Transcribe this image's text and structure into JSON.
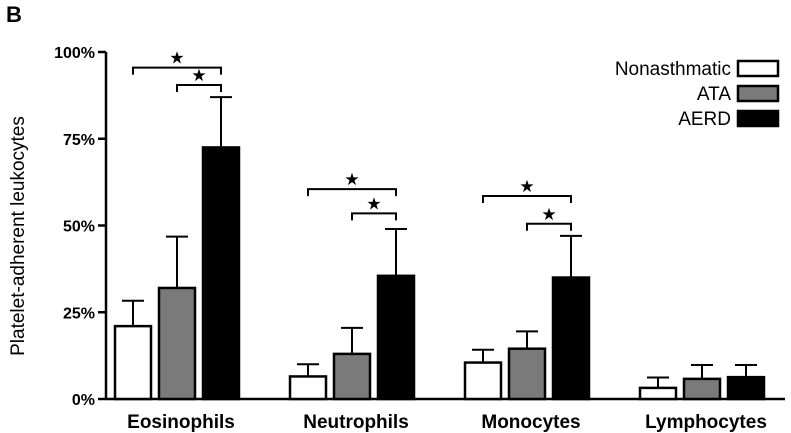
{
  "panel_label": "B",
  "chart_data": {
    "type": "bar",
    "ylabel": "Platelet-adherent leukocytes",
    "xlabel": "",
    "ylim": [
      0,
      100
    ],
    "y_ticks": [
      0,
      25,
      50,
      75,
      100
    ],
    "y_tick_labels": [
      "0%",
      "25%",
      "50%",
      "75%",
      "100%"
    ],
    "categories": [
      "Eosinophils",
      "Neutrophils",
      "Monocytes",
      "Lymphocytes"
    ],
    "legend_position": "top-right",
    "grid": false,
    "series": [
      {
        "name": "Nonasthmatic",
        "color": "#ffffff",
        "values": [
          21,
          6.5,
          10.5,
          3.2
        ],
        "errors": [
          7.3,
          3.5,
          3.7,
          3.0
        ]
      },
      {
        "name": "ATA",
        "color": "#7a7a7a",
        "values": [
          32,
          13,
          14.5,
          5.8
        ],
        "errors": [
          14.8,
          7.5,
          5.0,
          4.0
        ]
      },
      {
        "name": "AERD",
        "color": "#000000",
        "values": [
          72.5,
          35.5,
          35,
          6.3
        ],
        "errors": [
          14.5,
          13.5,
          12,
          3.5
        ]
      }
    ],
    "significance_marker": "★",
    "significance": [
      {
        "category": 0,
        "from_series": 0,
        "to_series": 2,
        "y": 95.5
      },
      {
        "category": 0,
        "from_series": 1,
        "to_series": 2,
        "y": 90.5
      },
      {
        "category": 1,
        "from_series": 0,
        "to_series": 2,
        "y": 60.5
      },
      {
        "category": 1,
        "from_series": 1,
        "to_series": 2,
        "y": 53.5
      },
      {
        "category": 2,
        "from_series": 0,
        "to_series": 2,
        "y": 58.5
      },
      {
        "category": 2,
        "from_series": 1,
        "to_series": 2,
        "y": 50.5
      }
    ]
  }
}
